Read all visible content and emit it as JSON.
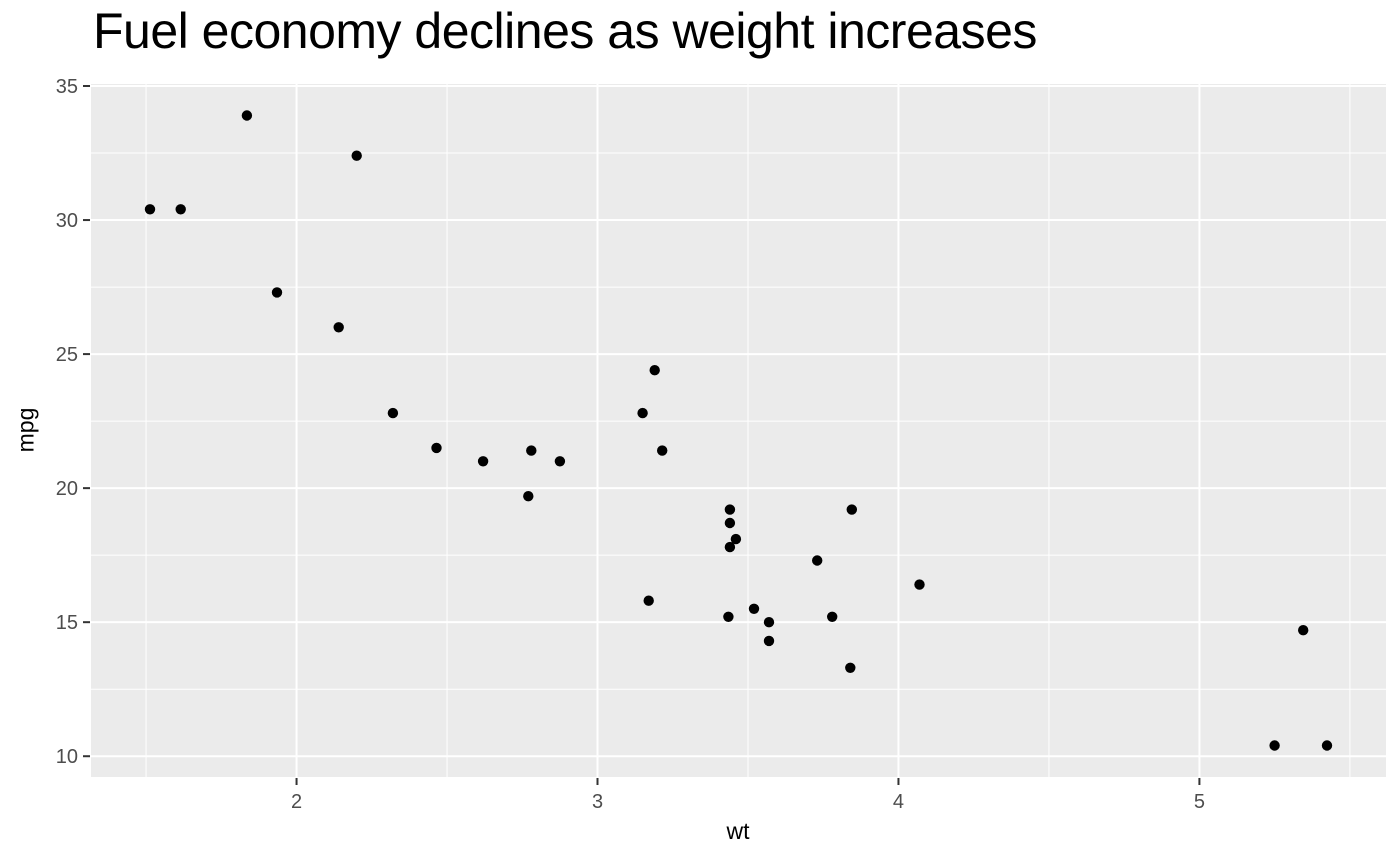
{
  "chart_data": {
    "type": "scatter",
    "title": "Fuel economy declines as weight increases",
    "xlabel": "wt",
    "ylabel": "mpg",
    "xlim": [
      1.317,
      5.62
    ],
    "ylim": [
      9.225,
      35.075
    ],
    "x_major_ticks": [
      2,
      3,
      4,
      5
    ],
    "x_minor_gridlines": [
      1.5,
      2.5,
      3.5,
      4.5,
      5.5
    ],
    "y_major_ticks": [
      10,
      15,
      20,
      25,
      30,
      35
    ],
    "y_minor_gridlines": [
      12.5,
      17.5,
      22.5,
      27.5,
      32.5
    ],
    "grid": true,
    "legend": "none",
    "colors": {
      "panel_background": "#EBEBEB",
      "gridline": "#FFFFFF",
      "tick_label": "#4D4D4D",
      "tick_mark": "#333333",
      "point": "#000000",
      "title": "#000000",
      "axis_title": "#000000",
      "figure_background": "#FFFFFF"
    },
    "points": [
      {
        "wt": 2.62,
        "mpg": 21.0
      },
      {
        "wt": 2.875,
        "mpg": 21.0
      },
      {
        "wt": 2.32,
        "mpg": 22.8
      },
      {
        "wt": 3.215,
        "mpg": 21.4
      },
      {
        "wt": 3.44,
        "mpg": 18.7
      },
      {
        "wt": 3.46,
        "mpg": 18.1
      },
      {
        "wt": 3.57,
        "mpg": 14.3
      },
      {
        "wt": 3.19,
        "mpg": 24.4
      },
      {
        "wt": 3.15,
        "mpg": 22.8
      },
      {
        "wt": 3.44,
        "mpg": 19.2
      },
      {
        "wt": 3.44,
        "mpg": 17.8
      },
      {
        "wt": 4.07,
        "mpg": 16.4
      },
      {
        "wt": 3.73,
        "mpg": 17.3
      },
      {
        "wt": 3.78,
        "mpg": 15.2
      },
      {
        "wt": 5.25,
        "mpg": 10.4
      },
      {
        "wt": 5.424,
        "mpg": 10.4
      },
      {
        "wt": 5.345,
        "mpg": 14.7
      },
      {
        "wt": 2.2,
        "mpg": 32.4
      },
      {
        "wt": 1.615,
        "mpg": 30.4
      },
      {
        "wt": 1.835,
        "mpg": 33.9
      },
      {
        "wt": 2.465,
        "mpg": 21.5
      },
      {
        "wt": 3.52,
        "mpg": 15.5
      },
      {
        "wt": 3.435,
        "mpg": 15.2
      },
      {
        "wt": 3.84,
        "mpg": 13.3
      },
      {
        "wt": 3.845,
        "mpg": 19.2
      },
      {
        "wt": 1.935,
        "mpg": 27.3
      },
      {
        "wt": 2.14,
        "mpg": 26.0
      },
      {
        "wt": 1.513,
        "mpg": 30.4
      },
      {
        "wt": 3.17,
        "mpg": 15.8
      },
      {
        "wt": 2.77,
        "mpg": 19.7
      },
      {
        "wt": 3.57,
        "mpg": 15.0
      },
      {
        "wt": 2.78,
        "mpg": 21.4
      }
    ]
  }
}
